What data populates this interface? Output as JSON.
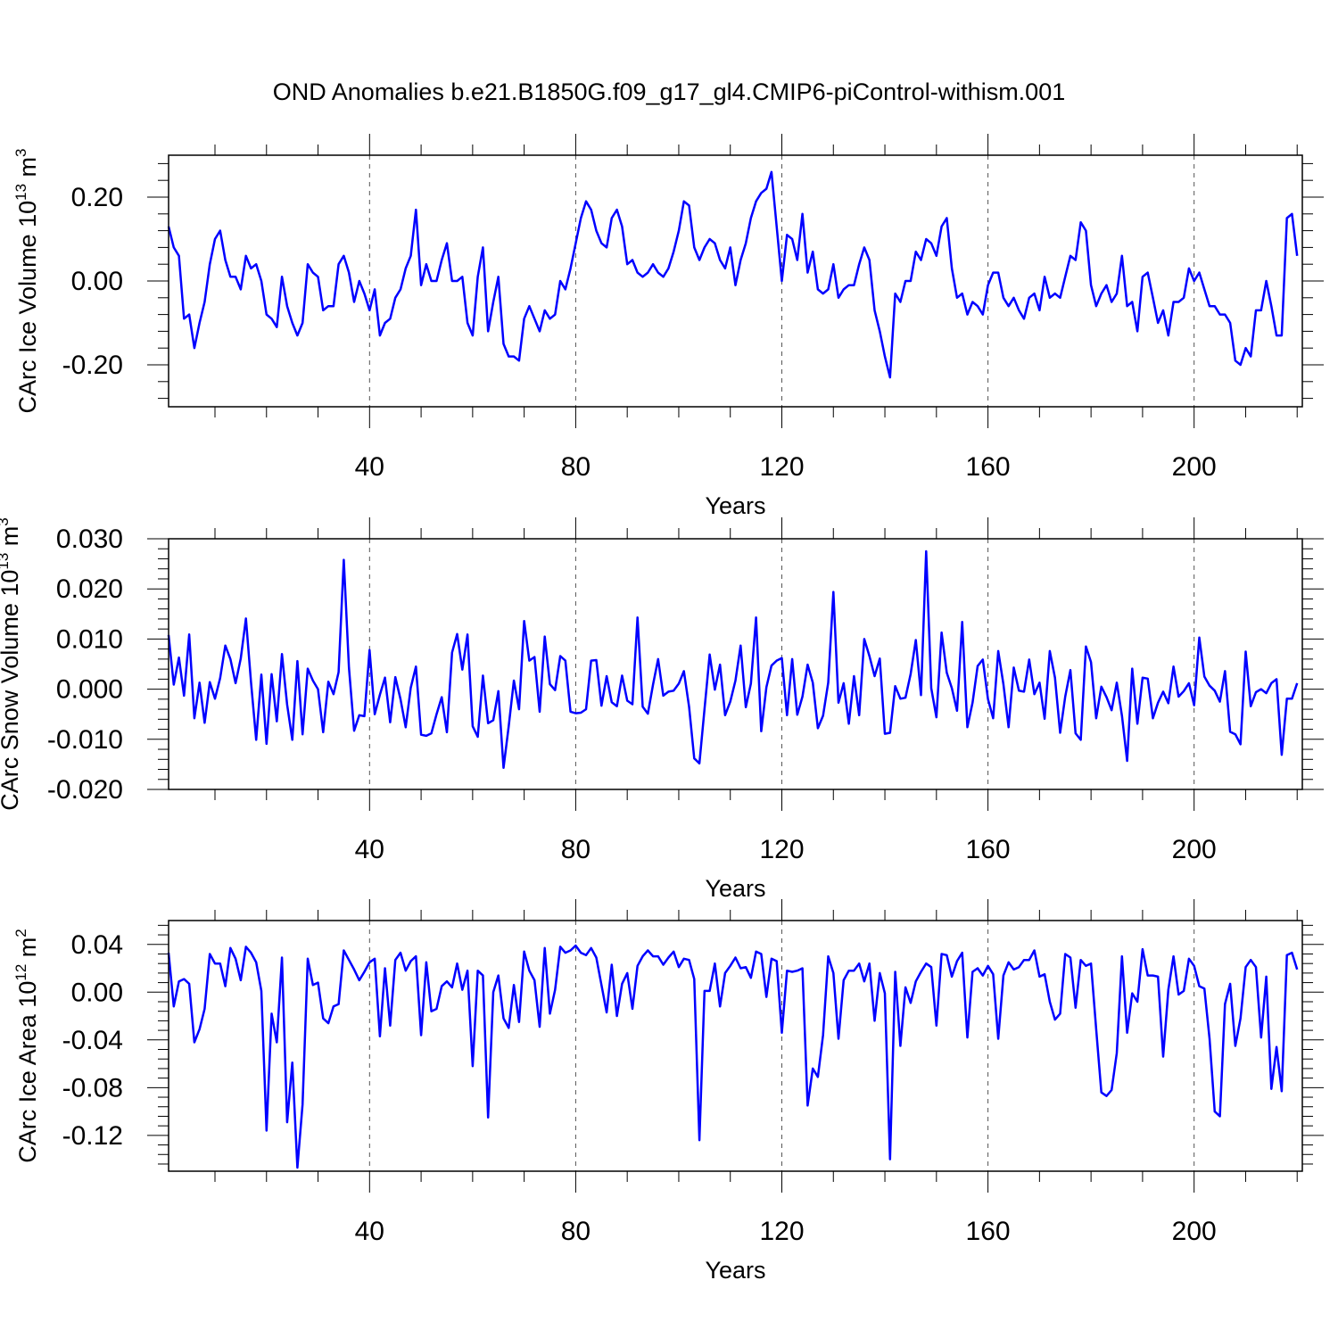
{
  "title": "OND Anomalies b.e21.B1850G.f09_g17_gl4.CMIP6-piControl-withism.001",
  "line_color": "#0000ff",
  "chart_data": [
    {
      "type": "line",
      "id": "ice-volume",
      "ylabel_main": "CArc Ice Volume 10",
      "ylabel_exp1": "13",
      "ylabel_unit": " m",
      "ylabel_exp2": "3",
      "xlabel": "Years",
      "xlim": [
        1,
        221
      ],
      "ylim": [
        -0.3,
        0.3
      ],
      "yticks": [
        0.2,
        0.0,
        -0.2
      ],
      "ytick_labels": [
        "0.20",
        "0.00",
        "-0.20"
      ],
      "xticks": [
        40,
        80,
        120,
        160,
        200
      ],
      "xtick_labels": [
        "40",
        "80",
        "120",
        "160",
        "200"
      ],
      "x_start": 1,
      "values": [
        0.13,
        0.08,
        0.06,
        -0.09,
        -0.08,
        -0.16,
        -0.1,
        -0.05,
        0.04,
        0.1,
        0.12,
        0.05,
        0.01,
        0.01,
        -0.02,
        0.06,
        0.03,
        0.04,
        0.0,
        -0.08,
        -0.09,
        -0.11,
        0.01,
        -0.06,
        -0.1,
        -0.13,
        -0.1,
        0.04,
        0.02,
        0.01,
        -0.07,
        -0.06,
        -0.06,
        0.04,
        0.06,
        0.02,
        -0.05,
        0.0,
        -0.03,
        -0.07,
        -0.02,
        -0.13,
        -0.1,
        -0.09,
        -0.04,
        -0.02,
        0.03,
        0.06,
        0.17,
        -0.01,
        0.04,
        0.0,
        0.0,
        0.05,
        0.09,
        0.0,
        0.0,
        0.01,
        -0.1,
        -0.13,
        0.01,
        0.08,
        -0.12,
        -0.05,
        0.01,
        -0.15,
        -0.18,
        -0.18,
        -0.19,
        -0.09,
        -0.06,
        -0.09,
        -0.12,
        -0.07,
        -0.09,
        -0.08,
        0.0,
        -0.02,
        0.03,
        0.09,
        0.15,
        0.19,
        0.17,
        0.12,
        0.09,
        0.08,
        0.15,
        0.17,
        0.13,
        0.04,
        0.05,
        0.02,
        0.01,
        0.02,
        0.04,
        0.02,
        0.01,
        0.03,
        0.07,
        0.12,
        0.19,
        0.18,
        0.08,
        0.05,
        0.08,
        0.1,
        0.09,
        0.05,
        0.03,
        0.08,
        -0.01,
        0.05,
        0.09,
        0.15,
        0.19,
        0.21,
        0.22,
        0.26,
        0.13,
        0.0,
        0.11,
        0.1,
        0.05,
        0.16,
        0.02,
        0.07,
        -0.02,
        -0.03,
        -0.02,
        0.04,
        -0.04,
        -0.02,
        -0.01,
        -0.01,
        0.04,
        0.08,
        0.05,
        -0.07,
        -0.12,
        -0.18,
        -0.23,
        -0.03,
        -0.05,
        0.0,
        0.0,
        0.07,
        0.05,
        0.1,
        0.09,
        0.06,
        0.13,
        0.15,
        0.03,
        -0.04,
        -0.03,
        -0.08,
        -0.05,
        -0.06,
        -0.08,
        -0.01,
        0.02,
        0.02,
        -0.04,
        -0.06,
        -0.04,
        -0.07,
        -0.09,
        -0.04,
        -0.03,
        -0.07,
        0.01,
        -0.04,
        -0.03,
        -0.04,
        0.01,
        0.06,
        0.05,
        0.14,
        0.12,
        -0.01,
        -0.06,
        -0.03,
        -0.01,
        -0.05,
        -0.03,
        0.06,
        -0.06,
        -0.05,
        -0.12,
        0.01,
        0.02,
        -0.04,
        -0.1,
        -0.07,
        -0.13,
        -0.05,
        -0.05,
        -0.04,
        0.03,
        0.0,
        0.02,
        -0.02,
        -0.06,
        -0.06,
        -0.08,
        -0.08,
        -0.1,
        -0.19,
        -0.2,
        -0.16,
        -0.18,
        -0.07,
        -0.07,
        0.0,
        -0.06,
        -0.13,
        -0.13,
        0.15,
        0.16,
        0.06
      ]
    },
    {
      "type": "line",
      "id": "snow-volume",
      "ylabel_main": "CArc Snow Volume 10",
      "ylabel_exp1": "13",
      "ylabel_unit": " m",
      "ylabel_exp2": "3",
      "xlabel": "Years",
      "xlim": [
        1,
        221
      ],
      "ylim": [
        -0.02,
        0.03
      ],
      "yticks": [
        0.03,
        0.02,
        0.01,
        0.0,
        -0.01,
        -0.02
      ],
      "ytick_labels": [
        "0.030",
        "0.020",
        "0.010",
        "0.000",
        "-0.010",
        "-0.020"
      ],
      "xticks": [
        40,
        80,
        120,
        160,
        200
      ],
      "xtick_labels": [
        "40",
        "80",
        "120",
        "160",
        "200"
      ],
      "x_start": 1,
      "values": [
        0.0108,
        0.0009,
        0.0063,
        -0.0013,
        0.0109,
        -0.0058,
        0.0013,
        -0.0067,
        0.0014,
        -0.0019,
        0.0022,
        0.0087,
        0.006,
        0.0012,
        0.0061,
        0.0141,
        0.0014,
        -0.0101,
        0.0029,
        -0.0109,
        0.003,
        -0.0064,
        0.007,
        -0.0031,
        -0.0101,
        0.0056,
        -0.009,
        0.0041,
        0.0017,
        0.0,
        -0.0086,
        0.0015,
        -0.001,
        0.0034,
        0.0258,
        0.0043,
        -0.0083,
        -0.0052,
        -0.0054,
        0.0078,
        -0.005,
        -0.0011,
        0.0023,
        -0.0066,
        0.0024,
        -0.002,
        -0.0076,
        0.0003,
        0.0045,
        -0.0091,
        -0.0093,
        -0.0088,
        -0.005,
        -0.0016,
        -0.0086,
        0.0073,
        0.011,
        0.0039,
        0.0109,
        -0.0074,
        -0.0095,
        0.0027,
        -0.0068,
        -0.0062,
        -0.0004,
        -0.0157,
        -0.0074,
        0.0017,
        -0.004,
        0.0136,
        0.0057,
        0.0064,
        -0.0045,
        0.0105,
        0.001,
        -0.0002,
        0.0066,
        0.0057,
        -0.0045,
        -0.0048,
        -0.0047,
        -0.004,
        0.0057,
        0.0058,
        -0.0033,
        0.0026,
        -0.0026,
        -0.0034,
        0.0027,
        -0.0023,
        -0.003,
        0.0143,
        -0.0035,
        -0.0049,
        0.0009,
        0.006,
        -0.0013,
        -0.0005,
        -0.0003,
        0.0011,
        0.0036,
        -0.0035,
        -0.0138,
        -0.0148,
        -0.004,
        0.0069,
        -0.0001,
        0.0049,
        -0.0052,
        -0.0025,
        0.0017,
        0.0087,
        -0.0036,
        0.0011,
        0.0143,
        -0.0084,
        0.0004,
        0.0047,
        0.0057,
        0.0062,
        -0.0052,
        0.006,
        -0.0051,
        -0.0015,
        0.0049,
        0.0013,
        -0.0078,
        -0.0053,
        0.0013,
        0.0194,
        -0.0027,
        0.0012,
        -0.0069,
        0.0026,
        -0.0052,
        0.01,
        0.0066,
        0.0026,
        0.0061,
        -0.0089,
        -0.0087,
        0.0006,
        -0.0019,
        -0.0017,
        0.003,
        0.0098,
        -0.0012,
        0.0275,
        0.0002,
        -0.0056,
        0.0113,
        0.0033,
        0.0002,
        -0.0043,
        0.0134,
        -0.0076,
        -0.0027,
        0.0046,
        0.0059,
        -0.002,
        -0.0058,
        0.0076,
        0.001,
        -0.0076,
        0.0043,
        -0.0003,
        -0.0005,
        0.0059,
        -0.001,
        0.0013,
        -0.0059,
        0.0076,
        0.0023,
        -0.0087,
        -0.0015,
        0.0038,
        -0.0088,
        -0.0101,
        0.0085,
        0.0054,
        -0.0058,
        0.0005,
        -0.0016,
        -0.0042,
        0.0013,
        -0.0053,
        -0.0143,
        0.0041,
        -0.0069,
        0.0023,
        0.0021,
        -0.0058,
        -0.0027,
        -0.0005,
        -0.0028,
        0.0045,
        -0.0015,
        -0.0004,
        0.0012,
        -0.0032,
        0.0103,
        0.0025,
        0.0007,
        -0.0003,
        -0.0025,
        0.0036,
        -0.0085,
        -0.009,
        -0.011,
        0.0075,
        -0.0034,
        -0.0006,
        -0.0,
        -0.0008,
        0.0012,
        0.002,
        -0.0131,
        -0.0019,
        -0.0019,
        0.0012
      ]
    },
    {
      "type": "line",
      "id": "ice-area",
      "ylabel_main": "CArc Ice Area 10",
      "ylabel_exp1": "12",
      "ylabel_unit": " m",
      "ylabel_exp2": "2",
      "xlabel": "Years",
      "xlim": [
        1,
        221
      ],
      "ylim": [
        -0.15,
        0.06
      ],
      "yticks": [
        0.04,
        0.0,
        -0.04,
        -0.08,
        -0.12
      ],
      "ytick_labels": [
        "0.04",
        "0.00",
        "-0.04",
        "-0.08",
        "-0.12"
      ],
      "xticks": [
        40,
        80,
        120,
        160,
        200
      ],
      "xtick_labels": [
        "40",
        "80",
        "120",
        "160",
        "200"
      ],
      "x_start": 1,
      "values": [
        0.033,
        -0.012,
        0.009,
        0.011,
        0.007,
        -0.042,
        -0.031,
        -0.014,
        0.032,
        0.024,
        0.024,
        0.005,
        0.037,
        0.028,
        0.01,
        0.038,
        0.033,
        0.025,
        0.001,
        -0.116,
        -0.018,
        -0.042,
        0.029,
        -0.109,
        -0.059,
        -0.147,
        -0.094,
        0.028,
        0.006,
        0.008,
        -0.022,
        -0.026,
        -0.012,
        -0.01,
        0.035,
        0.027,
        0.019,
        0.01,
        0.017,
        0.025,
        0.028,
        -0.037,
        0.02,
        -0.028,
        0.027,
        0.033,
        0.018,
        0.026,
        0.03,
        -0.036,
        0.025,
        -0.016,
        -0.014,
        0.005,
        0.009,
        0.004,
        0.024,
        0.002,
        0.018,
        -0.062,
        0.018,
        0.014,
        -0.105,
        0.0,
        0.014,
        -0.022,
        -0.03,
        0.006,
        -0.025,
        0.034,
        0.018,
        0.01,
        -0.029,
        0.037,
        -0.018,
        0.002,
        0.038,
        0.033,
        0.035,
        0.039,
        0.033,
        0.031,
        0.037,
        0.029,
        0.006,
        -0.017,
        0.023,
        -0.02,
        0.007,
        0.016,
        -0.014,
        0.022,
        0.03,
        0.035,
        0.03,
        0.03,
        0.023,
        0.029,
        0.034,
        0.021,
        0.028,
        0.027,
        0.011,
        -0.124,
        0.001,
        0.001,
        0.024,
        -0.012,
        0.016,
        0.022,
        0.029,
        0.02,
        0.021,
        0.012,
        0.034,
        0.032,
        -0.004,
        0.028,
        0.026,
        -0.034,
        0.018,
        0.017,
        0.018,
        0.02,
        -0.095,
        -0.064,
        -0.071,
        -0.036,
        0.03,
        0.016,
        -0.039,
        0.01,
        0.018,
        0.018,
        0.024,
        0.009,
        0.024,
        -0.024,
        0.016,
        -0.001,
        -0.14,
        0.017,
        -0.045,
        0.004,
        -0.009,
        0.009,
        0.017,
        0.024,
        0.021,
        -0.028,
        0.032,
        0.031,
        0.013,
        0.026,
        0.033,
        -0.038,
        0.017,
        0.02,
        0.014,
        0.022,
        0.015,
        -0.039,
        0.014,
        0.025,
        0.019,
        0.021,
        0.027,
        0.027,
        0.035,
        0.013,
        0.015,
        -0.008,
        -0.023,
        -0.018,
        0.032,
        0.029,
        -0.013,
        0.027,
        0.022,
        0.024,
        -0.031,
        -0.084,
        -0.087,
        -0.082,
        -0.051,
        0.03,
        -0.034,
        -0.001,
        -0.008,
        0.036,
        0.014,
        0.014,
        0.013,
        -0.054,
        0.002,
        0.03,
        -0.002,
        0.001,
        0.028,
        0.022,
        0.005,
        0.003,
        -0.039,
        -0.1,
        -0.104,
        -0.01,
        0.007,
        -0.045,
        -0.022,
        0.021,
        0.027,
        0.021,
        -0.038,
        0.013,
        -0.081,
        -0.046,
        -0.083,
        0.031,
        0.033,
        0.019
      ]
    }
  ]
}
